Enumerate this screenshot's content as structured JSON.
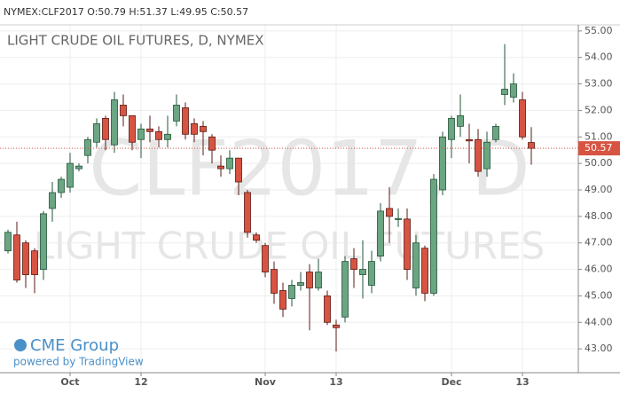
{
  "chart_data": {
    "type": "candlestick",
    "header": "NYMEX:CLF2017 O:50.79 H:51.37 L:49.95 C:50.57",
    "title": "LIGHT CRUDE OIL FUTURES, D, NYMEX",
    "watermark": [
      "CLF2017, D",
      "LIGHT CRUDE OIL FUTURES"
    ],
    "logo": "CME Group",
    "credit": "powered by TradingView",
    "up_color": "#6ba583",
    "down_color": "#d75442",
    "grid": true,
    "xlim": [
      -0.9,
      64.3
    ],
    "xticks": [
      {
        "value": 7,
        "label": "Oct"
      },
      {
        "value": 15,
        "label": "12"
      },
      {
        "value": 29,
        "label": "Nov"
      },
      {
        "value": 37,
        "label": "13"
      },
      {
        "value": 50,
        "label": "Dec"
      },
      {
        "value": 58,
        "label": "13"
      }
    ],
    "ylim": [
      42.1,
      55.23
    ],
    "yticks": [
      {
        "value": 43,
        "label": "43.00"
      },
      {
        "value": 44,
        "label": "44.00"
      },
      {
        "value": 45,
        "label": "45.00"
      },
      {
        "value": 46,
        "label": "46.00"
      },
      {
        "value": 47,
        "label": "47.00"
      },
      {
        "value": 48,
        "label": "48.00"
      },
      {
        "value": 49,
        "label": "49.00"
      },
      {
        "value": 50,
        "label": "50.00"
      },
      {
        "value": 51,
        "label": "51.00"
      },
      {
        "value": 52,
        "label": "52.00"
      },
      {
        "value": 53,
        "label": "53.00"
      },
      {
        "value": 54,
        "label": "54.00"
      },
      {
        "value": 55,
        "label": "55.00"
      }
    ],
    "last_price": 50.57,
    "open": [
      46.7,
      47.3,
      47.0,
      46.7,
      46.0,
      48.3,
      48.9,
      49.1,
      49.8,
      50.3,
      50.8,
      51.7,
      50.7,
      52.2,
      51.8,
      50.9,
      51.3,
      51.2,
      50.9,
      51.6,
      52.1,
      51.5,
      51.4,
      51.0,
      49.9,
      49.8,
      50.2,
      48.9,
      47.3,
      46.9,
      46.0,
      45.2,
      44.9,
      45.4,
      45.9,
      45.3,
      45.0,
      43.9,
      44.2,
      46.4,
      45.8,
      45.4,
      46.5,
      48.3,
      47.88,
      47.9,
      45.3,
      46.8,
      45.1,
      49.0,
      50.9,
      51.4,
      50.9,
      50.9,
      49.8,
      50.9,
      52.6,
      52.5,
      52.4,
      50.79
    ],
    "high": [
      47.5,
      47.8,
      47.1,
      46.8,
      48.2,
      49.3,
      49.5,
      50.4,
      50.0,
      51.0,
      51.7,
      51.8,
      52.7,
      52.6,
      51.8,
      51.5,
      51.8,
      51.4,
      51.8,
      52.6,
      52.3,
      51.7,
      51.6,
      51.1,
      50.3,
      50.5,
      50.2,
      49.0,
      47.4,
      47.0,
      46.3,
      45.5,
      45.6,
      45.9,
      46.2,
      46.4,
      45.2,
      44.1,
      46.5,
      46.8,
      47.1,
      46.7,
      48.5,
      49.1,
      48.3,
      48.3,
      47.3,
      46.9,
      49.6,
      51.2,
      51.8,
      52.6,
      51.5,
      51.3,
      51.2,
      51.5,
      54.5,
      53.4,
      52.7,
      51.37
    ],
    "low": [
      46.6,
      45.5,
      45.3,
      45.1,
      45.6,
      47.8,
      48.7,
      48.9,
      49.7,
      50.0,
      50.6,
      50.5,
      50.4,
      51.4,
      50.5,
      50.2,
      50.8,
      50.6,
      50.6,
      51.4,
      50.9,
      50.8,
      50.3,
      50.0,
      49.5,
      49.6,
      48.8,
      47.2,
      47.0,
      45.7,
      44.7,
      44.2,
      44.6,
      45.2,
      43.7,
      45.2,
      43.9,
      42.9,
      44.0,
      45.3,
      44.9,
      45.1,
      46.3,
      47.0,
      47.6,
      45.6,
      45.0,
      44.8,
      45.0,
      48.8,
      50.2,
      51.0,
      50.0,
      49.5,
      49.5,
      50.8,
      52.2,
      52.3,
      50.9,
      49.95
    ],
    "close": [
      47.4,
      45.6,
      45.8,
      45.8,
      48.1,
      48.9,
      49.4,
      50.0,
      49.9,
      50.9,
      51.5,
      50.9,
      52.4,
      51.8,
      50.8,
      51.3,
      51.2,
      50.9,
      51.1,
      52.2,
      51.1,
      51.1,
      51.2,
      50.5,
      49.8,
      50.2,
      49.3,
      47.4,
      47.1,
      45.9,
      45.1,
      44.5,
      45.4,
      45.5,
      45.3,
      45.9,
      44.0,
      43.8,
      46.3,
      46.0,
      46.0,
      46.3,
      48.2,
      48.0,
      47.92,
      46.0,
      47.0,
      45.1,
      49.4,
      51.0,
      51.7,
      51.8,
      50.85,
      49.7,
      50.8,
      51.4,
      52.8,
      53.0,
      51.0,
      50.57
    ]
  }
}
